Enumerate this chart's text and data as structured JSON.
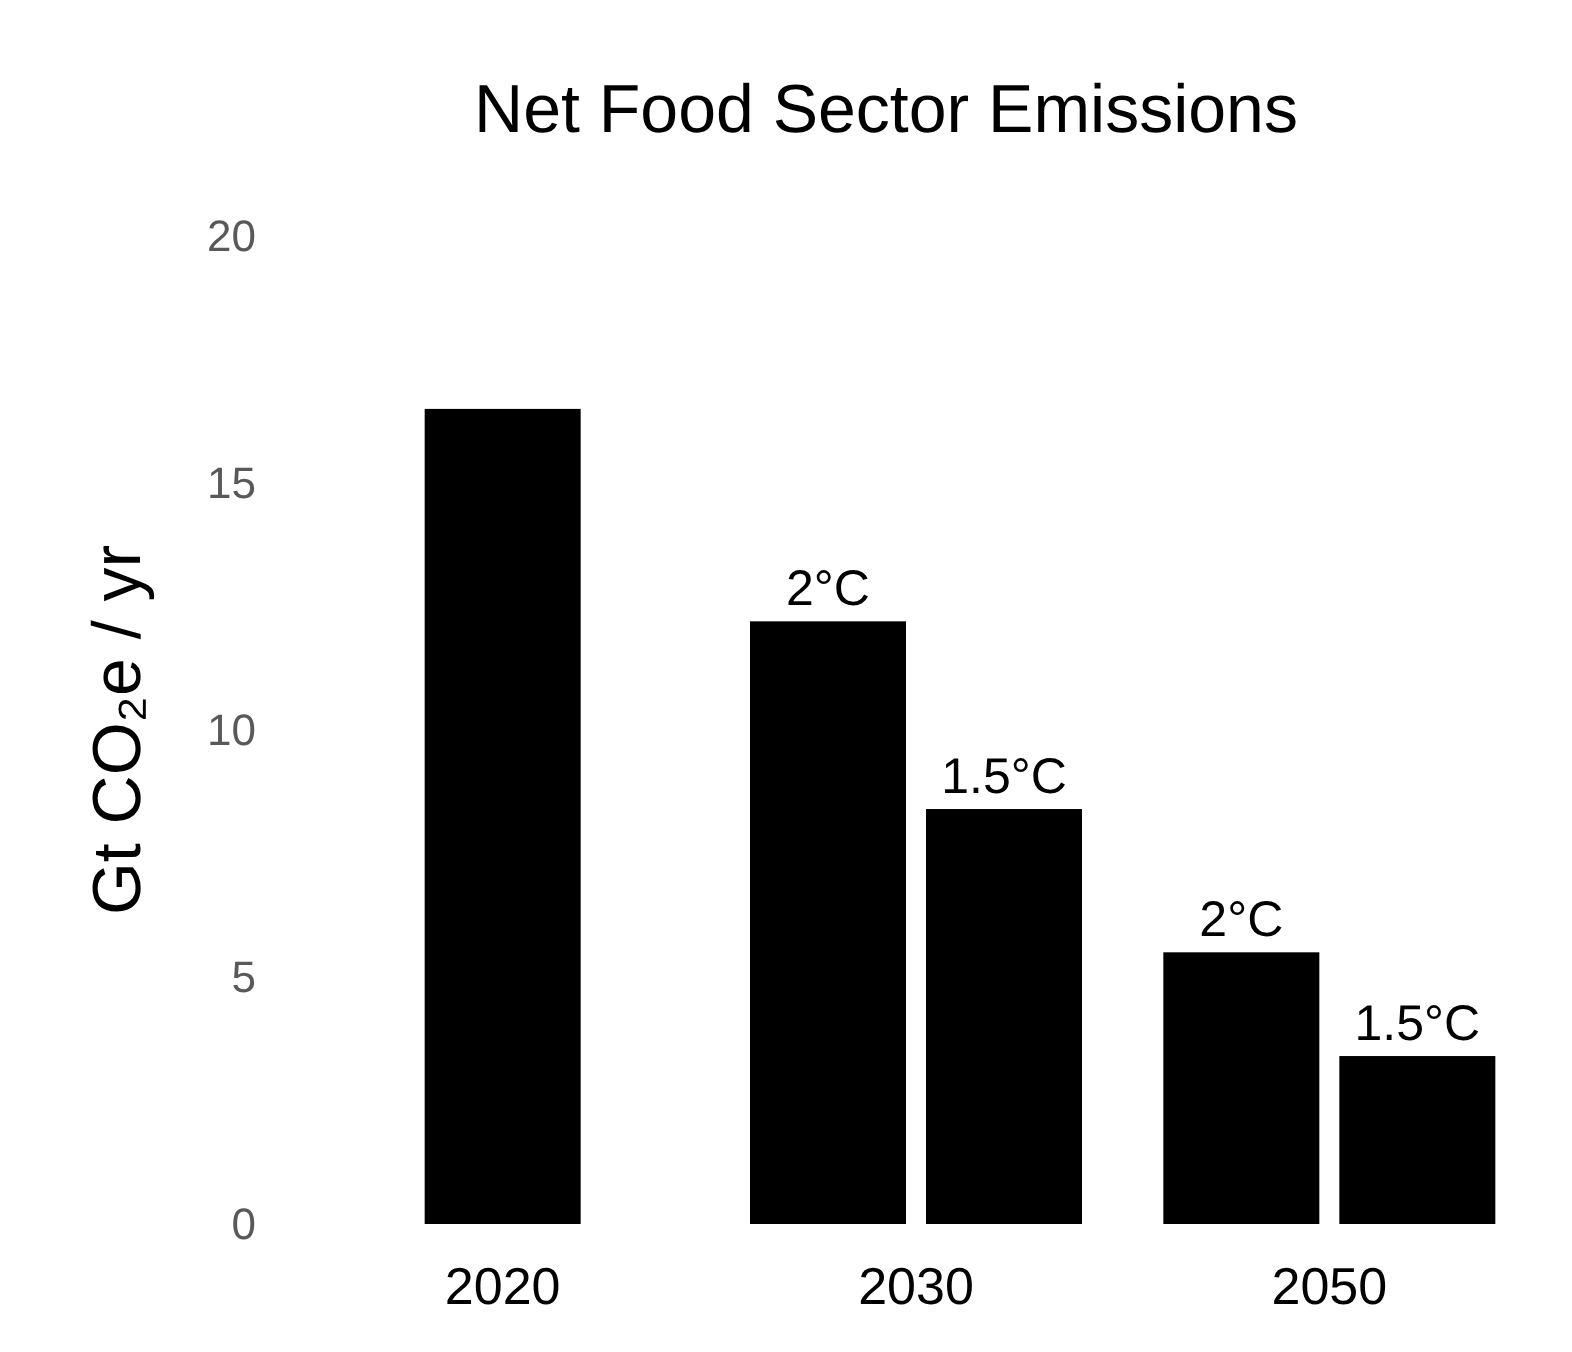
{
  "chart_data": {
    "type": "bar",
    "title": "Net Food Sector Emissions",
    "ylabel": "Gt CO₂e / yr",
    "categories": [
      "2020",
      "2030",
      "2050"
    ],
    "series": [
      {
        "color": "#000000",
        "values": [
          16.5,
          null,
          null
        ]
      },
      {
        "name": "2°C",
        "color": "#000000",
        "values": [
          null,
          12.2,
          5.5
        ]
      },
      {
        "name": "1.5°C",
        "color": "#000000",
        "values": [
          null,
          8.4,
          3.4
        ]
      }
    ],
    "ylim": [
      0,
      20
    ],
    "yticks": [
      0,
      5,
      10,
      15,
      20
    ],
    "grid": false,
    "legend": false
  }
}
